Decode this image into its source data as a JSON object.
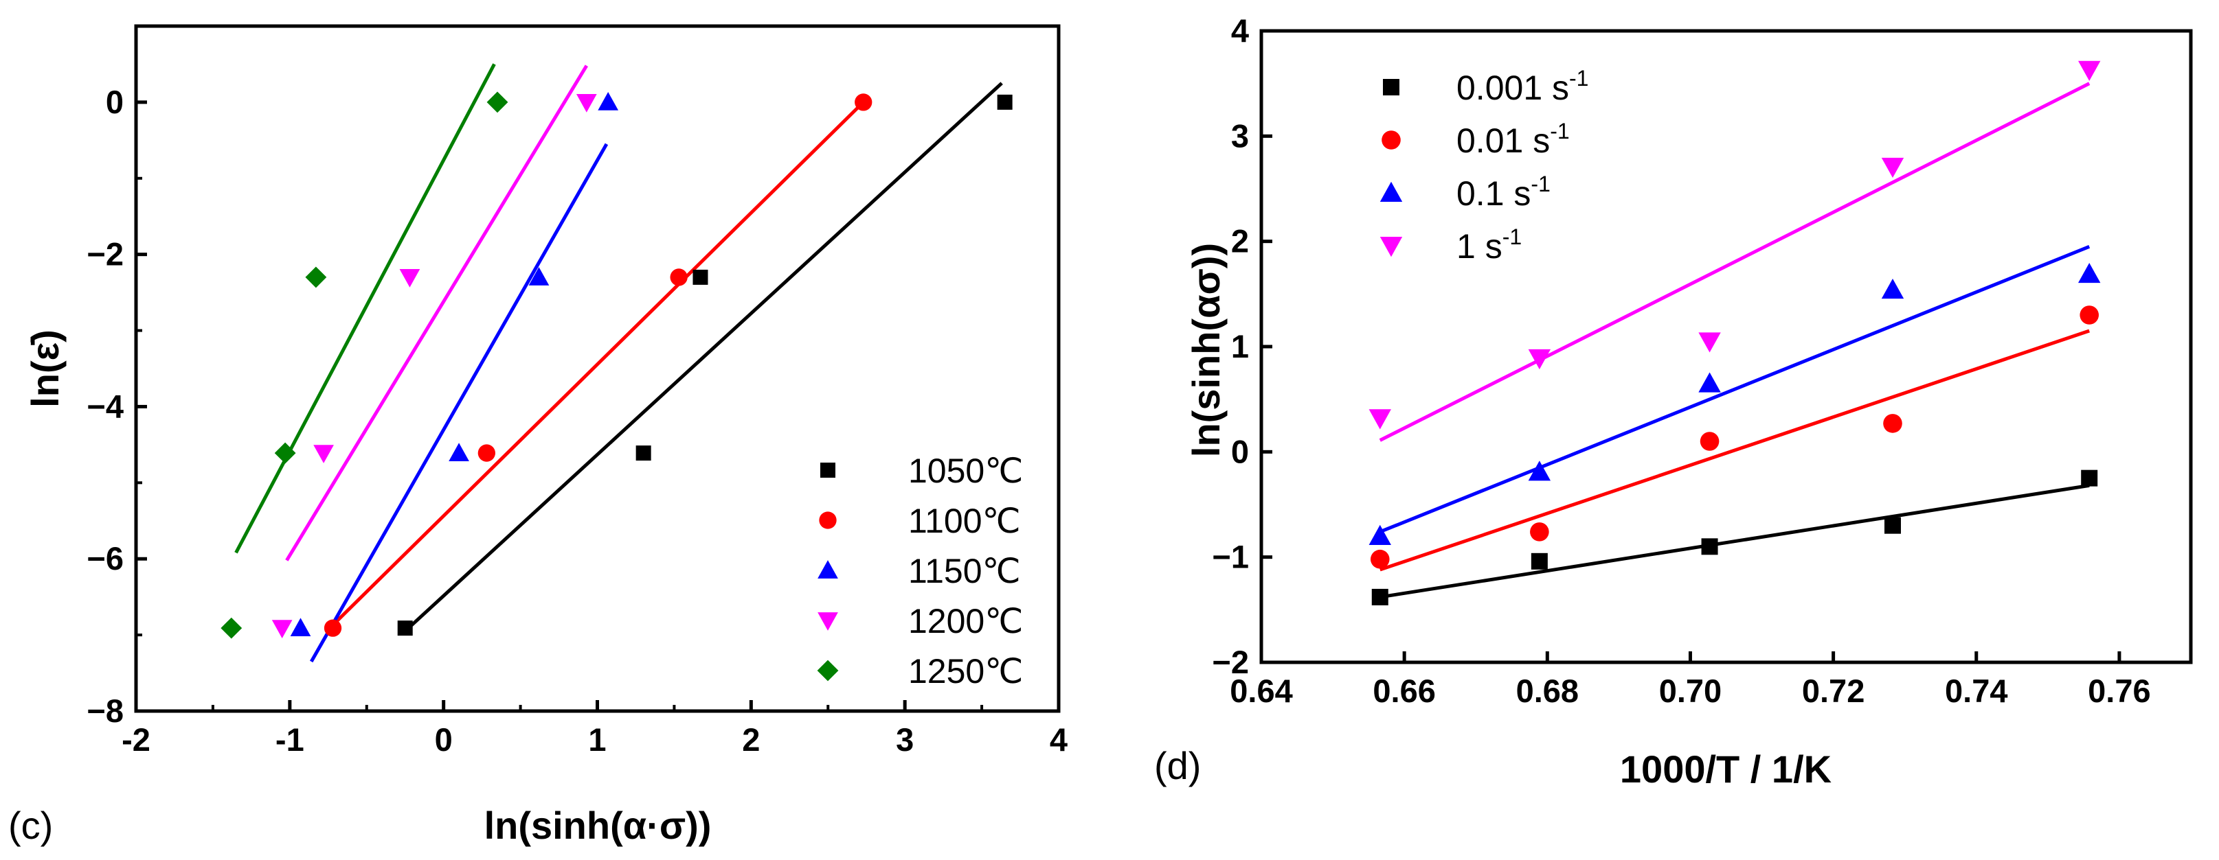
{
  "chart_data": [
    {
      "type": "scatter",
      "panel": "(c)",
      "xlabel": "ln(sinh(α·σ))",
      "ylabel": "ln(ε̇)",
      "xlim": [
        -2,
        4
      ],
      "ylim": [
        -8,
        1
      ],
      "x_ticks": [
        -2,
        -1,
        0,
        1,
        2,
        3,
        4
      ],
      "y_ticks": [
        -8,
        -6,
        -4,
        -2,
        0
      ],
      "legend_position": "bottom-right",
      "series": [
        {
          "name": "1050℃",
          "marker": "square",
          "color": "#000000",
          "x": [
            -0.25,
            1.3,
            1.67,
            3.65
          ],
          "y": [
            -6.91,
            -4.61,
            -2.3,
            0.0
          ],
          "fit": {
            "x": [
              -0.25,
              3.63
            ],
            "y": [
              -6.95,
              0.25
            ]
          }
        },
        {
          "name": "1100℃",
          "marker": "circle",
          "color": "#ff0000",
          "x": [
            -0.72,
            0.28,
            1.53,
            2.73
          ],
          "y": [
            -6.91,
            -4.61,
            -2.3,
            0.0
          ],
          "fit": {
            "x": [
              -0.72,
              2.73
            ],
            "y": [
              -6.87,
              0.0
            ]
          }
        },
        {
          "name": "1150℃",
          "marker": "triangle-up",
          "color": "#0000ff",
          "x": [
            -0.93,
            0.1,
            0.62,
            1.07
          ],
          "y": [
            -6.91,
            -4.61,
            -2.3,
            0.0
          ],
          "fit": {
            "x": [
              -0.86,
              1.06
            ],
            "y": [
              -7.35,
              -0.55
            ]
          }
        },
        {
          "name": "1200℃",
          "marker": "triangle-down",
          "color": "#ff00ff",
          "x": [
            -1.05,
            -0.78,
            -0.22,
            0.93
          ],
          "y": [
            -6.91,
            -4.61,
            -2.3,
            0.0
          ],
          "fit": {
            "x": [
              -1.02,
              0.93
            ],
            "y": [
              -6.02,
              0.48
            ]
          }
        },
        {
          "name": "1250℃",
          "marker": "diamond",
          "color": "#007f00",
          "x": [
            -1.38,
            -1.03,
            -0.83,
            0.35
          ],
          "y": [
            -6.91,
            -4.61,
            -2.3,
            0.0
          ],
          "fit": {
            "x": [
              -1.35,
              0.33
            ],
            "y": [
              -5.92,
              0.5
            ]
          }
        }
      ]
    },
    {
      "type": "scatter",
      "panel": "(d)",
      "xlabel": "1000/T / 1/K",
      "ylabel": "ln(sinh(ασ))",
      "xlim": [
        0.64,
        0.77
      ],
      "ylim": [
        -2,
        4
      ],
      "x_ticks": [
        0.64,
        0.66,
        0.68,
        0.7,
        0.72,
        0.74,
        0.76
      ],
      "x_tick_labels": [
        "0.64",
        "0.66",
        "0.68",
        "0.70",
        "0.72",
        "0.74",
        "0.76"
      ],
      "y_ticks": [
        -2,
        -1,
        0,
        1,
        2,
        3,
        4
      ],
      "legend_position": "top-left",
      "series": [
        {
          "name": "0.001 s",
          "name_sup": "-1",
          "marker": "square",
          "color": "#000000",
          "x": [
            0.6566,
            0.6789,
            0.7027,
            0.7283,
            0.7558
          ],
          "y": [
            -1.38,
            -1.04,
            -0.9,
            -0.7,
            -0.25
          ],
          "fit": {
            "x": [
              0.6566,
              0.7558
            ],
            "y": [
              -1.38,
              -0.32
            ]
          }
        },
        {
          "name": "0.01 s",
          "name_sup": "-1",
          "marker": "circle",
          "color": "#ff0000",
          "x": [
            0.6566,
            0.6789,
            0.7027,
            0.7283,
            0.7558
          ],
          "y": [
            -1.02,
            -0.76,
            0.1,
            0.27,
            1.3
          ],
          "fit": {
            "x": [
              0.6566,
              0.7558
            ],
            "y": [
              -1.12,
              1.15
            ]
          }
        },
        {
          "name": "0.1 s",
          "name_sup": "-1",
          "marker": "triangle-up",
          "color": "#0000ff",
          "x": [
            0.6566,
            0.6789,
            0.7027,
            0.7283,
            0.7558
          ],
          "y": [
            -0.8,
            -0.19,
            0.65,
            1.54,
            1.69
          ],
          "fit": {
            "x": [
              0.6566,
              0.7558
            ],
            "y": [
              -0.76,
              1.95
            ]
          }
        },
        {
          "name": "1 s",
          "name_sup": "-1",
          "marker": "triangle-down",
          "color": "#ff00ff",
          "x": [
            0.6566,
            0.6789,
            0.7027,
            0.7283,
            0.7558
          ],
          "y": [
            0.32,
            0.89,
            1.05,
            2.71,
            3.63
          ],
          "fit": {
            "x": [
              0.6566,
              0.7558
            ],
            "y": [
              0.11,
              3.5
            ]
          }
        }
      ]
    }
  ]
}
